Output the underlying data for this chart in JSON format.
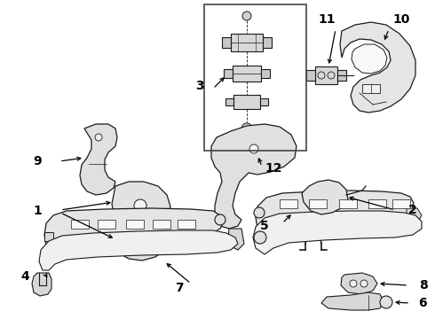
{
  "bg_color": "#ffffff",
  "line_color": "#1a1a1a",
  "label_color": "#000000",
  "label_fontsize": 10,
  "label_fontweight": "bold",
  "arrow_color": "#000000",
  "figsize": [
    4.9,
    3.6
  ],
  "dpi": 100
}
